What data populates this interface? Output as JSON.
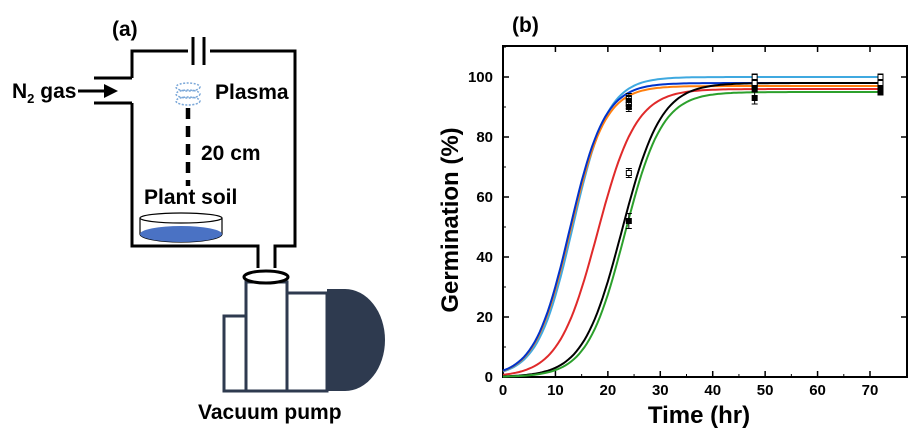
{
  "panel_a": {
    "label": "(a)",
    "gas_label": "N",
    "gas_subscript": "2",
    "gas_suffix": " gas",
    "plasma_label": "Plasma",
    "distance_label": "20 cm",
    "soil_label": "Plant soil",
    "pump_label": "Vacuum pump",
    "colors": {
      "soil": "#4a72c4",
      "pump": "#2e3a4f",
      "plasma": "#7aa7d8"
    }
  },
  "panel_b": {
    "label": "(b)"
  },
  "chart_data": {
    "type": "line",
    "title": "",
    "xlabel": "Time (hr)",
    "ylabel": "Germination (%)",
    "xlim": [
      0,
      72
    ],
    "ylim": [
      0,
      110
    ],
    "xticks": [
      0,
      10,
      20,
      30,
      40,
      50,
      60,
      70
    ],
    "yticks": [
      0,
      20,
      40,
      60,
      80,
      100
    ],
    "grid": false,
    "legend": "none",
    "series": [
      {
        "color": "#3fa9e0",
        "asymptote": 100,
        "midpoint": 13.3,
        "rate": 0.3,
        "points": [
          {
            "x": 24,
            "y": 93,
            "err": 1.5
          },
          {
            "x": 48,
            "y": 100,
            "err": 1
          },
          {
            "x": 72,
            "y": 100,
            "err": 1
          }
        ]
      },
      {
        "color": "#ff7f0e",
        "asymptote": 97,
        "midpoint": 12.8,
        "rate": 0.3,
        "points": [
          {
            "x": 24,
            "y": 92,
            "err": 1.5
          },
          {
            "x": 48,
            "y": 97,
            "err": 1
          },
          {
            "x": 72,
            "y": 97,
            "err": 1
          }
        ]
      },
      {
        "color": "#0033cc",
        "asymptote": 98,
        "midpoint": 12.7,
        "rate": 0.3,
        "points": [
          {
            "x": 24,
            "y": 91,
            "err": 1.5
          },
          {
            "x": 48,
            "y": 98,
            "err": 1
          },
          {
            "x": 72,
            "y": 98,
            "err": 1
          }
        ]
      },
      {
        "color": "#e02a2a",
        "asymptote": 96,
        "midpoint": 18,
        "rate": 0.27,
        "points": [
          {
            "x": 24,
            "y": 90,
            "err": 1.5
          },
          {
            "x": 48,
            "y": 96,
            "err": 1
          },
          {
            "x": 72,
            "y": 96,
            "err": 1
          }
        ]
      },
      {
        "color": "#000000",
        "asymptote": 98,
        "midpoint": 22.7,
        "rate": 0.27,
        "points": [
          {
            "x": 24,
            "y": 68,
            "err": 1.5
          },
          {
            "x": 48,
            "y": 98,
            "err": 1
          },
          {
            "x": 72,
            "y": 98,
            "err": 1
          }
        ]
      },
      {
        "color": "#2ca02c",
        "asymptote": 95,
        "midpoint": 23.2,
        "rate": 0.28,
        "points": [
          {
            "x": 24,
            "y": 52,
            "err": 2.5
          },
          {
            "x": 48,
            "y": 93,
            "err": 2
          },
          {
            "x": 72,
            "y": 95,
            "err": 1
          }
        ]
      }
    ]
  }
}
